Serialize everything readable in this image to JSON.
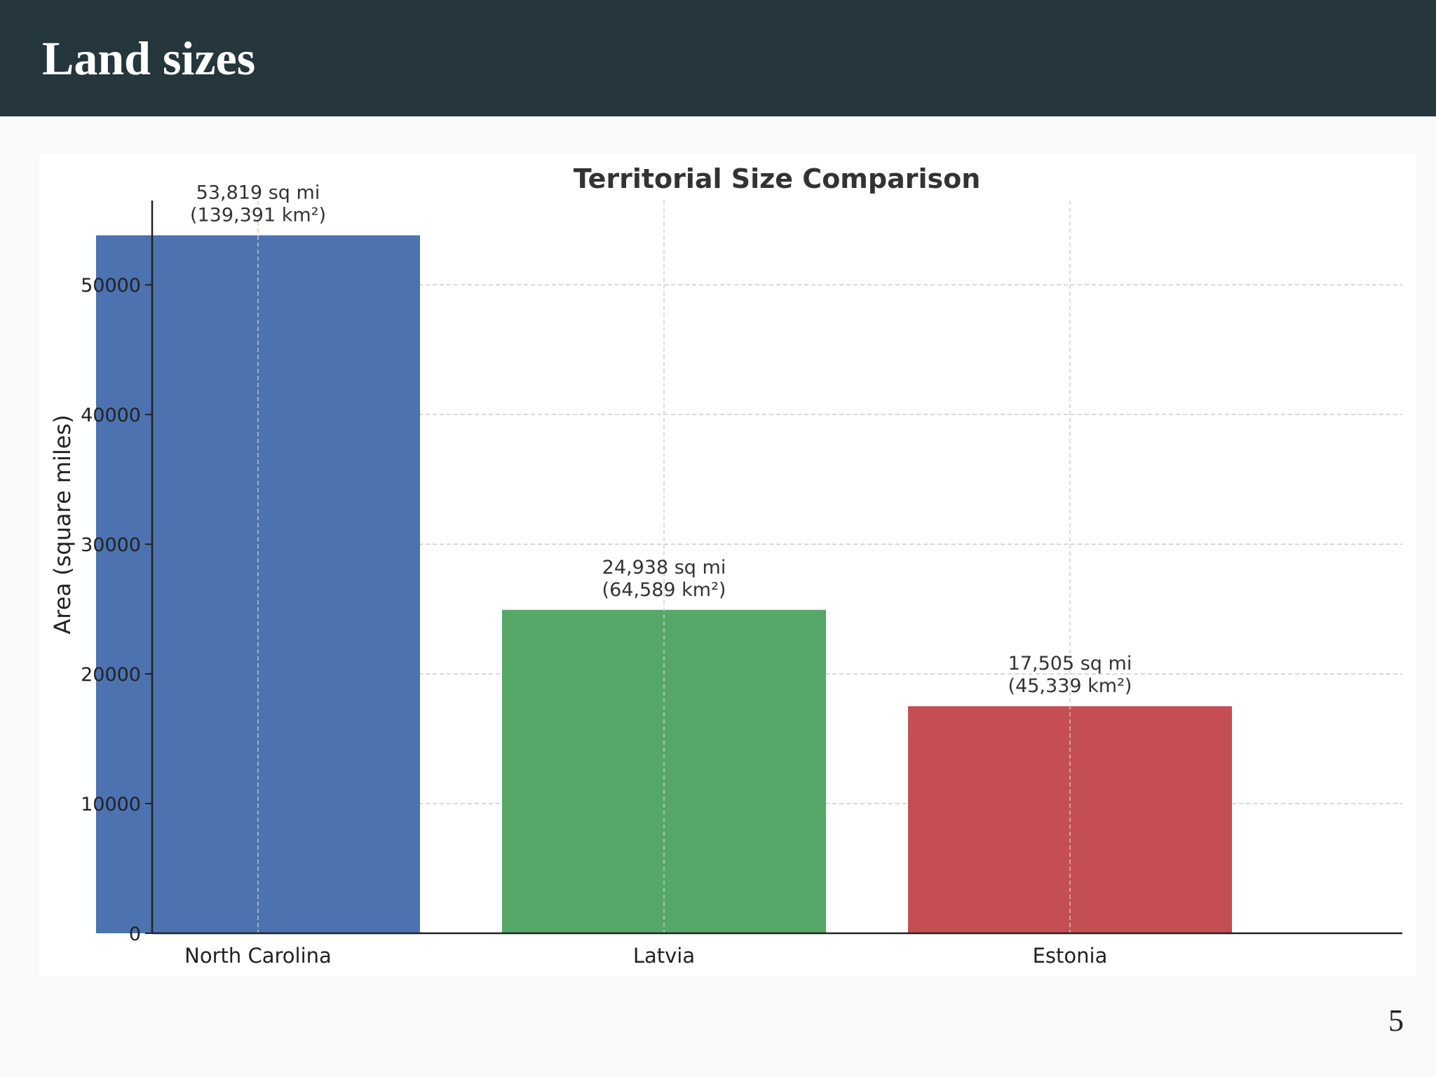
{
  "header": {
    "title": "Land sizes"
  },
  "page": {
    "number": "5"
  },
  "colors": {
    "header_bg": "#25363c",
    "nc": "#4c72b0",
    "lv": "#55a868",
    "ee": "#c44e52"
  },
  "chart_data": {
    "type": "bar",
    "title": "Territorial Size Comparison",
    "xlabel": "",
    "ylabel": "Area (square miles)",
    "categories": [
      "North Carolina",
      "Latvia",
      "Estonia"
    ],
    "values": [
      53819,
      24938,
      17505
    ],
    "labels_sq_mi": [
      "53,819 sq mi",
      "24,938 sq mi",
      "17,505 sq mi"
    ],
    "labels_km2": [
      "(139,391 km²)",
      "(64,589 km²)",
      "(45,339 km²)"
    ],
    "bar_colors": [
      "#4c72b0",
      "#55a868",
      "#c44e52"
    ],
    "ylim": [
      0,
      56500
    ],
    "yticks": [
      0,
      10000,
      20000,
      30000,
      40000,
      50000
    ],
    "grid": true
  }
}
